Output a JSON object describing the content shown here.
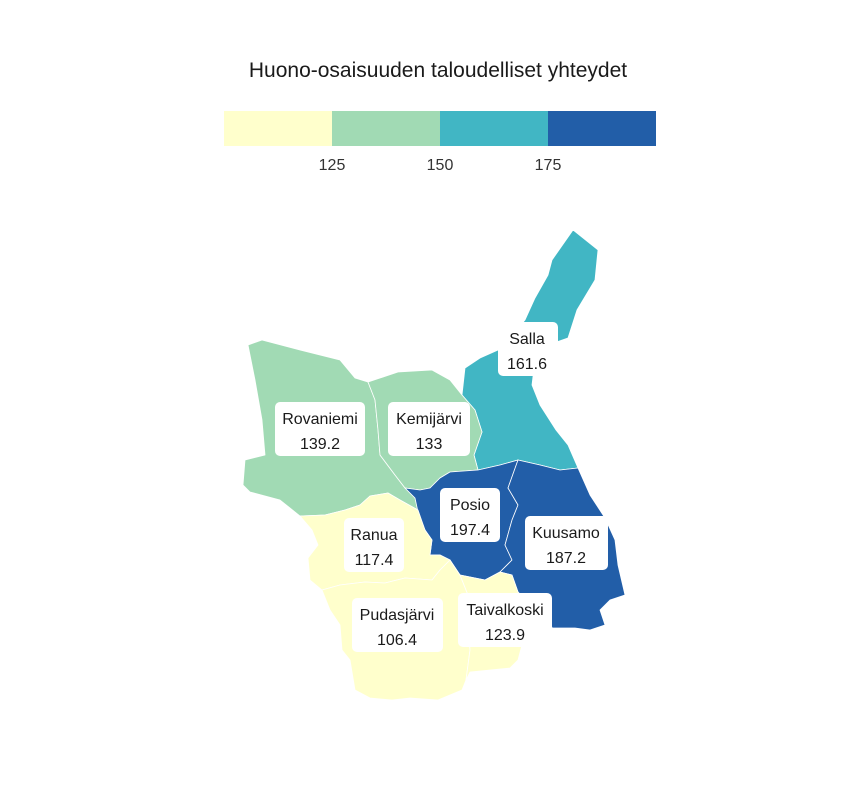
{
  "title": "Huono-osaisuuden taloudelliset yhteydet",
  "legend": {
    "colors": [
      "#ffffcc",
      "#a1dab4",
      "#41b6c4",
      "#225ea8"
    ],
    "ticks": [
      "125",
      "150",
      "175"
    ]
  },
  "regions": [
    {
      "name": "Salla",
      "value": "161.6",
      "color": "#41b6c4"
    },
    {
      "name": "Rovaniemi",
      "value": "139.2",
      "color": "#a1dab4"
    },
    {
      "name": "Kemijärvi",
      "value": "133",
      "color": "#a1dab4"
    },
    {
      "name": "Posio",
      "value": "197.4",
      "color": "#225ea8"
    },
    {
      "name": "Kuusamo",
      "value": "187.2",
      "color": "#225ea8"
    },
    {
      "name": "Ranua",
      "value": "117.4",
      "color": "#ffffcc"
    },
    {
      "name": "Pudasjärvi",
      "value": "106.4",
      "color": "#ffffcc"
    },
    {
      "name": "Taivalkoski",
      "value": "123.9",
      "color": "#ffffcc"
    }
  ]
}
